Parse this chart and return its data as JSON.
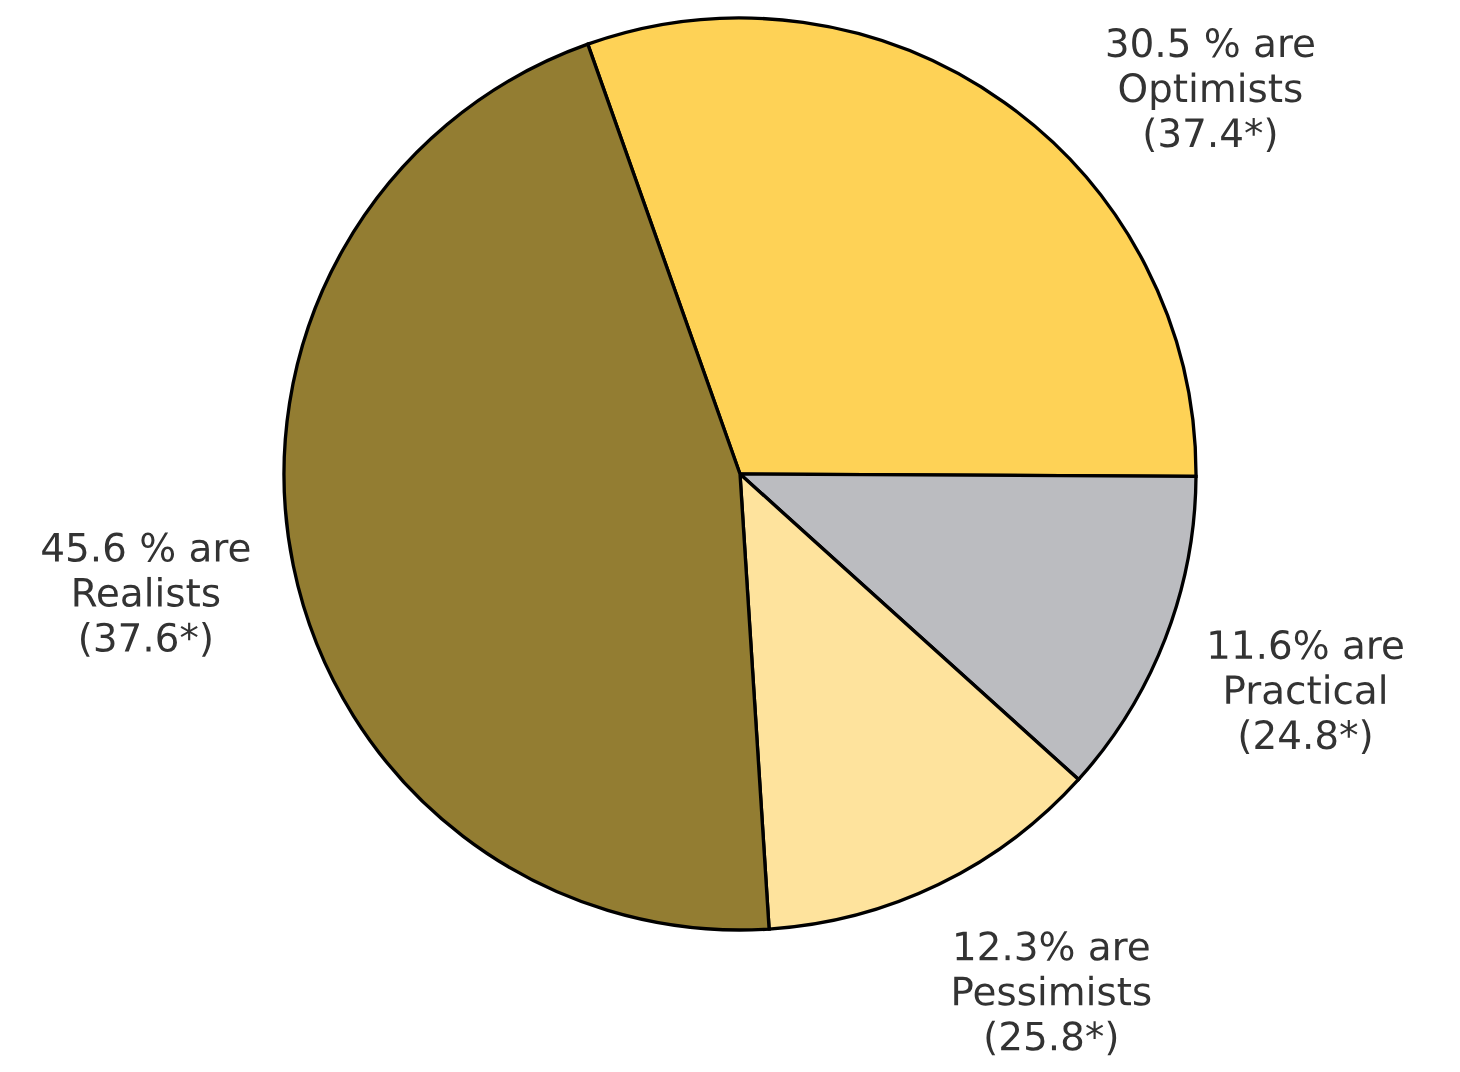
{
  "chart_data": {
    "type": "pie",
    "categories": [
      "30.5 % are\nOptimists\n(37.4*)",
      "11.6% are\nPractical\n(24.8*)",
      "12.3% are\nPessimists\n(25.8*)",
      "45.6 % are\nRealists\n(37.6*)"
    ],
    "values": [
      30.5,
      11.6,
      12.3,
      45.6
    ],
    "colors": [
      "#fed256",
      "#bbbcc0",
      "#fee39d",
      "#937d32"
    ],
    "legend": false
  }
}
